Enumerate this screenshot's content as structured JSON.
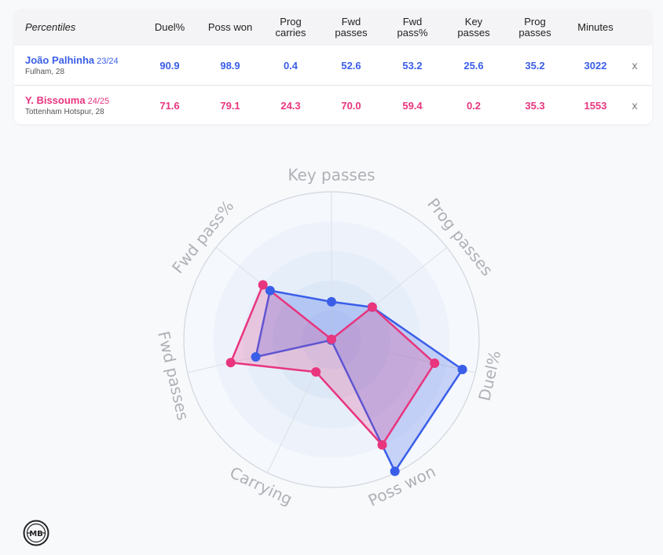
{
  "table": {
    "header_label": "Percentiles",
    "columns": [
      "Duel%",
      "Poss won",
      "Prog\ncarries",
      "Fwd\npasses",
      "Fwd\npass%",
      "Key\npasses",
      "Prog\npasses",
      "Minutes"
    ],
    "remove_label": "x",
    "players": [
      {
        "name": "João Palhinha",
        "season": "23/24",
        "club": "Fulham, 28",
        "values": [
          "90.9",
          "98.9",
          "0.4",
          "52.6",
          "53.2",
          "25.6",
          "35.2",
          "3022"
        ]
      },
      {
        "name": "Y. Bissouma",
        "season": "24/25",
        "club": "Tottenham Hotspur, 28",
        "values": [
          "71.6",
          "79.1",
          "24.3",
          "70.0",
          "59.4",
          "0.2",
          "35.3",
          "1553"
        ]
      }
    ]
  },
  "colors": {
    "player1": "#3a5ee8",
    "player2": "#e8357e"
  },
  "chart_data": {
    "type": "radar",
    "axes": [
      "Key passes",
      "Prog passes",
      "Duel%",
      "Poss won",
      "Carrying",
      "Fwd passes",
      "Fwd pass%"
    ],
    "range": [
      0,
      100
    ],
    "series": [
      {
        "name": "João Palhinha",
        "values": [
          25.6,
          35.2,
          90.9,
          98.9,
          0.4,
          52.6,
          53.2
        ]
      },
      {
        "name": "Y. Bissouma",
        "values": [
          0.2,
          35.3,
          71.6,
          79.1,
          24.3,
          70.0,
          59.4
        ]
      }
    ]
  },
  "logo": {
    "icon": "mb-logo-icon",
    "text": "MB"
  }
}
